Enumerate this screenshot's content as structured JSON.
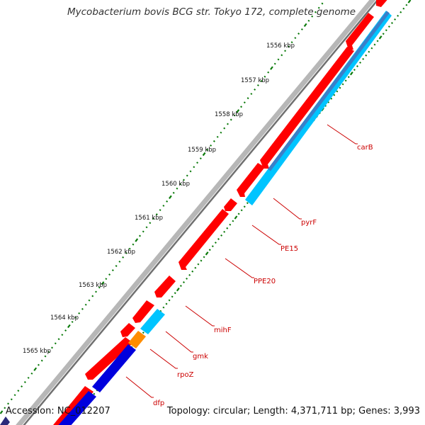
{
  "title": "Mycobacterium bovis BCG str. Tokyo 172, complete genome",
  "footer": {
    "accession": "Accession: NC_012207",
    "topology": "Topology: circular; Length: 4,371,711 bp; Genes: 3,993"
  },
  "colors": {
    "background": "#ffffff",
    "backbone": "#8c8c8c",
    "forward_cds": "#ff0000",
    "reverse_cds": "#00c4ff",
    "reverse_cds_dark": "#3a7fc9",
    "operon_blue": "#0000dd",
    "small_gene": "#ff8c00",
    "tick": "#0a7a0a",
    "label_line": "#cc0000"
  },
  "ruler": {
    "labels": [
      "1556 kbp",
      "1557 kbp",
      "1558 kbp",
      "1559 kbp",
      "1560 kbp",
      "1561 kbp",
      "1562 kbp",
      "1563 kbp",
      "1564 kbp",
      "1565 kbp"
    ]
  },
  "genes": [
    {
      "name": "carB"
    },
    {
      "name": "pyrF"
    },
    {
      "name": "PE15"
    },
    {
      "name": "PPE20"
    },
    {
      "name": "mihF"
    },
    {
      "name": "gmk"
    },
    {
      "name": "rpoZ"
    },
    {
      "name": "dfp"
    }
  ]
}
